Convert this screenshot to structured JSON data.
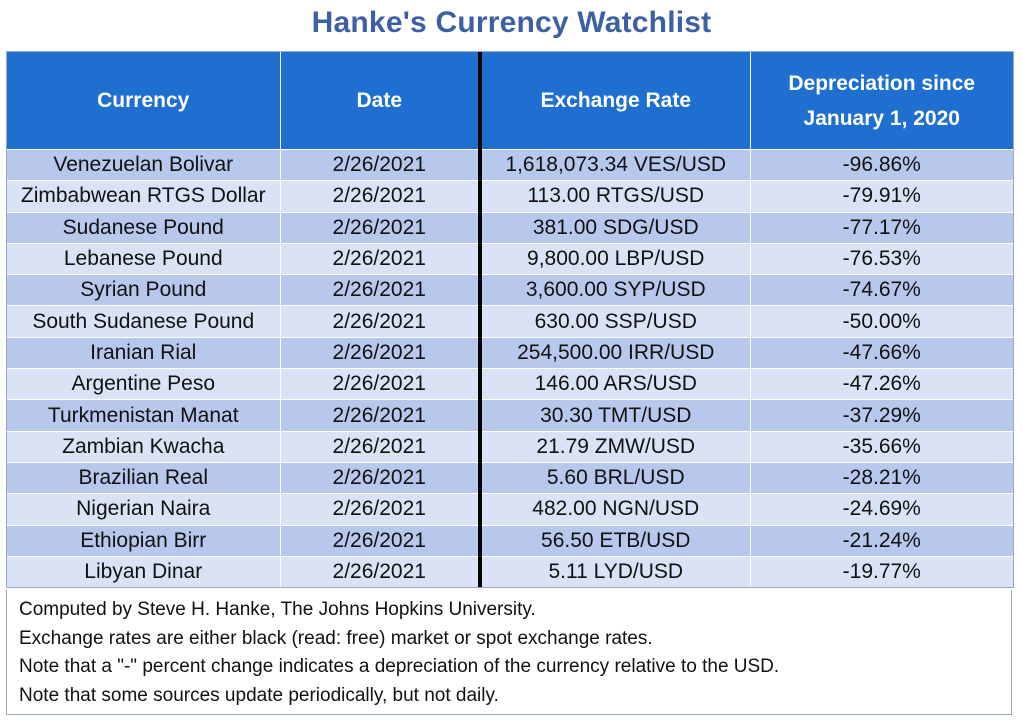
{
  "title": "Hanke's Currency Watchlist",
  "colors": {
    "title": "#3d5fa4",
    "header_bg": "#1e6fd0",
    "row_dark": "#b8c8ec",
    "row_light": "#dae2f6"
  },
  "chart_data": {
    "type": "table",
    "title": "Hanke's Currency Watchlist",
    "columns": [
      "Currency",
      "Date",
      "Exchange Rate",
      "Depreciation since January 1, 2020"
    ],
    "header_lines": {
      "dep_line1": "Depreciation since",
      "dep_line2": "January 1, 2020"
    },
    "rows": [
      [
        "Venezuelan Bolivar",
        "2/26/2021",
        "1,618,073.34 VES/USD",
        "-96.86%"
      ],
      [
        "Zimbabwean RTGS Dollar",
        "2/26/2021",
        "113.00 RTGS/USD",
        "-79.91%"
      ],
      [
        "Sudanese Pound",
        "2/26/2021",
        "381.00 SDG/USD",
        "-77.17%"
      ],
      [
        "Lebanese Pound",
        "2/26/2021",
        "9,800.00 LBP/USD",
        "-76.53%"
      ],
      [
        "Syrian Pound",
        "2/26/2021",
        "3,600.00 SYP/USD",
        "-74.67%"
      ],
      [
        "South Sudanese Pound",
        "2/26/2021",
        "630.00 SSP/USD",
        "-50.00%"
      ],
      [
        "Iranian Rial",
        "2/26/2021",
        "254,500.00 IRR/USD",
        "-47.66%"
      ],
      [
        "Argentine Peso",
        "2/26/2021",
        "146.00 ARS/USD",
        "-47.26%"
      ],
      [
        "Turkmenistan Manat",
        "2/26/2021",
        "30.30 TMT/USD",
        "-37.29%"
      ],
      [
        "Zambian Kwacha",
        "2/26/2021",
        "21.79 ZMW/USD",
        "-35.66%"
      ],
      [
        "Brazilian Real",
        "2/26/2021",
        "5.60 BRL/USD",
        "-28.21%"
      ],
      [
        "Nigerian Naira",
        "2/26/2021",
        "482.00 NGN/USD",
        "-24.69%"
      ],
      [
        "Ethiopian Birr",
        "2/26/2021",
        "56.50 ETB/USD",
        "-21.24%"
      ],
      [
        "Libyan Dinar",
        "2/26/2021",
        "5.11 LYD/USD",
        "-19.77%"
      ]
    ]
  },
  "notes": [
    "Computed by Steve H. Hanke, The Johns Hopkins University.",
    "Exchange rates are either black (read: free) market or spot exchange rates.",
    "Note that a \"-\" percent change indicates a depreciation of the currency relative to the USD.",
    "Note that some sources update periodically, but not daily."
  ]
}
